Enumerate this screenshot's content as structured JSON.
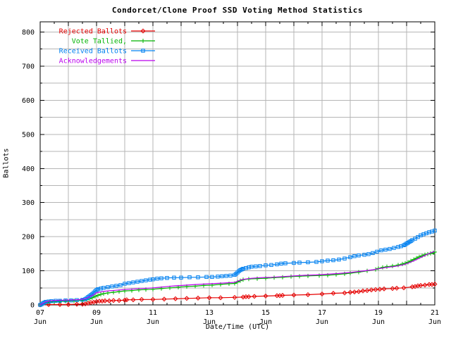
{
  "page": {
    "background": "#ffffff",
    "text_color": "#000000",
    "grid_color": "#b5b5b5"
  },
  "chart_data": {
    "type": "line",
    "title": "Condorcet/Clone Proof SSD Voting Method Statistics",
    "xlabel": "Date/Time (UTC)",
    "ylabel": "Ballots",
    "xlim": [
      7,
      21
    ],
    "ylim": [
      0,
      830
    ],
    "grid": {
      "enabled": true,
      "x_interval_days": 1,
      "y_interval": 50
    },
    "legend_position": "top-left-inside",
    "x_ticks": [
      {
        "day": 7,
        "line1": "07",
        "line2": "Jun"
      },
      {
        "day": 9,
        "line1": "09",
        "line2": "Jun"
      },
      {
        "day": 11,
        "line1": "11",
        "line2": "Jun"
      },
      {
        "day": 13,
        "line1": "13",
        "line2": "Jun"
      },
      {
        "day": 15,
        "line1": "15",
        "line2": "Jun"
      },
      {
        "day": 17,
        "line1": "17",
        "line2": "Jun"
      },
      {
        "day": 19,
        "line1": "19",
        "line2": "Jun"
      },
      {
        "day": 21,
        "line1": "21",
        "line2": "Jun"
      }
    ],
    "y_ticks": [
      0,
      100,
      200,
      300,
      400,
      500,
      600,
      700,
      800
    ],
    "series": [
      {
        "name": "Rejected Ballots",
        "color": "#e60000",
        "marker": "diamond",
        "points": [
          [
            7.0,
            0
          ],
          [
            7.3,
            1
          ],
          [
            7.7,
            1
          ],
          [
            8.0,
            1
          ],
          [
            8.3,
            2
          ],
          [
            8.5,
            2
          ],
          [
            8.6,
            3
          ],
          [
            8.7,
            5
          ],
          [
            8.8,
            7
          ],
          [
            8.9,
            8
          ],
          [
            9.0,
            10
          ],
          [
            9.1,
            11
          ],
          [
            9.2,
            11
          ],
          [
            9.3,
            12
          ],
          [
            9.45,
            12
          ],
          [
            9.6,
            13
          ],
          [
            9.8,
            13
          ],
          [
            10.0,
            14
          ],
          [
            10.07,
            15
          ],
          [
            10.3,
            15
          ],
          [
            10.6,
            16
          ],
          [
            11.0,
            16
          ],
          [
            11.4,
            17
          ],
          [
            11.8,
            18
          ],
          [
            12.2,
            19
          ],
          [
            12.6,
            20
          ],
          [
            13.0,
            21
          ],
          [
            13.4,
            21
          ],
          [
            13.9,
            22
          ],
          [
            14.2,
            23
          ],
          [
            14.3,
            24
          ],
          [
            14.4,
            24
          ],
          [
            14.6,
            25
          ],
          [
            15.0,
            26
          ],
          [
            15.4,
            27
          ],
          [
            15.5,
            27
          ],
          [
            15.6,
            28
          ],
          [
            16.0,
            29
          ],
          [
            16.5,
            30
          ],
          [
            17.0,
            32
          ],
          [
            17.4,
            34
          ],
          [
            17.8,
            35
          ],
          [
            18.0,
            37
          ],
          [
            18.15,
            38
          ],
          [
            18.3,
            39
          ],
          [
            18.45,
            41
          ],
          [
            18.6,
            42
          ],
          [
            18.75,
            44
          ],
          [
            18.9,
            45
          ],
          [
            19.05,
            46
          ],
          [
            19.2,
            47
          ],
          [
            19.5,
            48
          ],
          [
            19.65,
            49
          ],
          [
            19.9,
            50
          ],
          [
            20.2,
            53
          ],
          [
            20.3,
            54
          ],
          [
            20.4,
            56
          ],
          [
            20.5,
            57
          ],
          [
            20.65,
            58
          ],
          [
            20.8,
            60
          ],
          [
            20.9,
            60
          ],
          [
            21.0,
            61
          ]
        ]
      },
      {
        "name": "Vote Tallied,",
        "color": "#00b400",
        "marker": "plus",
        "points": [
          [
            7.0,
            0
          ],
          [
            7.05,
            1
          ],
          [
            7.1,
            3
          ],
          [
            7.2,
            6
          ],
          [
            7.3,
            8
          ],
          [
            7.5,
            9
          ],
          [
            7.7,
            10
          ],
          [
            7.9,
            11
          ],
          [
            8.2,
            12
          ],
          [
            8.5,
            13
          ],
          [
            8.65,
            15
          ],
          [
            8.75,
            18
          ],
          [
            8.85,
            21
          ],
          [
            8.95,
            25
          ],
          [
            9.05,
            28
          ],
          [
            9.15,
            31
          ],
          [
            9.25,
            33
          ],
          [
            9.4,
            35
          ],
          [
            9.6,
            37
          ],
          [
            9.8,
            39
          ],
          [
            10.0,
            41
          ],
          [
            10.25,
            42
          ],
          [
            10.5,
            44
          ],
          [
            10.75,
            45
          ],
          [
            11.0,
            46
          ],
          [
            11.3,
            48
          ],
          [
            11.6,
            50
          ],
          [
            11.9,
            52
          ],
          [
            12.2,
            54
          ],
          [
            12.5,
            55
          ],
          [
            12.8,
            57
          ],
          [
            13.1,
            58
          ],
          [
            13.4,
            60
          ],
          [
            13.7,
            62
          ],
          [
            13.9,
            63
          ],
          [
            14.0,
            67
          ],
          [
            14.1,
            71
          ],
          [
            14.2,
            74
          ],
          [
            14.4,
            76
          ],
          [
            14.7,
            77
          ],
          [
            15.0,
            78
          ],
          [
            15.3,
            80
          ],
          [
            15.6,
            81
          ],
          [
            15.9,
            83
          ],
          [
            16.2,
            84
          ],
          [
            16.5,
            85
          ],
          [
            16.9,
            86
          ],
          [
            17.2,
            87
          ],
          [
            17.5,
            89
          ],
          [
            17.8,
            91
          ],
          [
            18.0,
            93
          ],
          [
            18.3,
            96
          ],
          [
            18.6,
            100
          ],
          [
            18.9,
            104
          ],
          [
            19.0,
            107
          ],
          [
            19.15,
            110
          ],
          [
            19.3,
            112
          ],
          [
            19.5,
            114
          ],
          [
            19.7,
            117
          ],
          [
            19.85,
            120
          ],
          [
            19.95,
            122
          ],
          [
            20.05,
            125
          ],
          [
            20.15,
            129
          ],
          [
            20.25,
            133
          ],
          [
            20.35,
            137
          ],
          [
            20.45,
            141
          ],
          [
            20.55,
            144
          ],
          [
            20.65,
            147
          ],
          [
            20.75,
            149
          ],
          [
            20.85,
            151
          ],
          [
            20.95,
            153
          ],
          [
            21.0,
            155
          ]
        ]
      },
      {
        "name": "Received Ballots",
        "color": "#0080f0",
        "marker": "square",
        "points": [
          [
            7.0,
            0
          ],
          [
            7.05,
            2
          ],
          [
            7.1,
            5
          ],
          [
            7.15,
            7
          ],
          [
            7.2,
            9
          ],
          [
            7.3,
            10
          ],
          [
            7.4,
            11
          ],
          [
            7.55,
            12
          ],
          [
            7.7,
            12
          ],
          [
            7.9,
            13
          ],
          [
            8.1,
            13
          ],
          [
            8.3,
            14
          ],
          [
            8.5,
            15
          ],
          [
            8.6,
            17
          ],
          [
            8.65,
            20
          ],
          [
            8.7,
            23
          ],
          [
            8.75,
            26
          ],
          [
            8.8,
            29
          ],
          [
            8.85,
            32
          ],
          [
            8.9,
            36
          ],
          [
            8.95,
            40
          ],
          [
            9.0,
            44
          ],
          [
            9.05,
            46
          ],
          [
            9.15,
            48
          ],
          [
            9.25,
            50
          ],
          [
            9.4,
            52
          ],
          [
            9.55,
            54
          ],
          [
            9.7,
            56
          ],
          [
            9.85,
            58
          ],
          [
            10.0,
            62
          ],
          [
            10.15,
            64
          ],
          [
            10.3,
            66
          ],
          [
            10.45,
            68
          ],
          [
            10.6,
            70
          ],
          [
            10.75,
            72
          ],
          [
            10.9,
            74
          ],
          [
            11.0,
            75
          ],
          [
            11.15,
            77
          ],
          [
            11.3,
            78
          ],
          [
            11.5,
            79
          ],
          [
            11.75,
            80
          ],
          [
            12.0,
            80
          ],
          [
            12.3,
            81
          ],
          [
            12.6,
            81
          ],
          [
            12.9,
            82
          ],
          [
            13.1,
            82
          ],
          [
            13.3,
            83
          ],
          [
            13.45,
            84
          ],
          [
            13.6,
            85
          ],
          [
            13.75,
            86
          ],
          [
            13.9,
            88
          ],
          [
            13.95,
            91
          ],
          [
            14.0,
            95
          ],
          [
            14.05,
            99
          ],
          [
            14.1,
            102
          ],
          [
            14.15,
            104
          ],
          [
            14.2,
            106
          ],
          [
            14.3,
            108
          ],
          [
            14.4,
            110
          ],
          [
            14.5,
            112
          ],
          [
            14.65,
            113
          ],
          [
            14.8,
            114
          ],
          [
            15.0,
            116
          ],
          [
            15.2,
            117
          ],
          [
            15.4,
            119
          ],
          [
            15.55,
            121
          ],
          [
            15.7,
            122
          ],
          [
            16.0,
            123
          ],
          [
            16.2,
            124
          ],
          [
            16.5,
            125
          ],
          [
            16.8,
            126
          ],
          [
            17.0,
            128
          ],
          [
            17.2,
            130
          ],
          [
            17.4,
            131
          ],
          [
            17.6,
            133
          ],
          [
            17.8,
            136
          ],
          [
            18.0,
            140
          ],
          [
            18.15,
            143
          ],
          [
            18.3,
            145
          ],
          [
            18.5,
            147
          ],
          [
            18.65,
            149
          ],
          [
            18.8,
            152
          ],
          [
            18.95,
            156
          ],
          [
            19.1,
            160
          ],
          [
            19.25,
            162
          ],
          [
            19.4,
            164
          ],
          [
            19.55,
            167
          ],
          [
            19.7,
            170
          ],
          [
            19.8,
            172
          ],
          [
            19.9,
            175
          ],
          [
            19.95,
            177
          ],
          [
            20.0,
            180
          ],
          [
            20.05,
            182
          ],
          [
            20.1,
            185
          ],
          [
            20.15,
            187
          ],
          [
            20.2,
            190
          ],
          [
            20.3,
            194
          ],
          [
            20.4,
            199
          ],
          [
            20.5,
            204
          ],
          [
            20.6,
            207
          ],
          [
            20.7,
            210
          ],
          [
            20.8,
            213
          ],
          [
            20.9,
            215
          ],
          [
            21.0,
            218
          ]
        ]
      },
      {
        "name": "Acknowledgements",
        "color": "#bb00ee",
        "marker": "none",
        "points": [
          [
            7.0,
            0
          ],
          [
            7.1,
            5
          ],
          [
            7.2,
            9
          ],
          [
            7.35,
            12
          ],
          [
            7.5,
            13
          ],
          [
            7.9,
            14
          ],
          [
            8.3,
            15
          ],
          [
            8.6,
            18
          ],
          [
            8.75,
            24
          ],
          [
            8.9,
            30
          ],
          [
            9.0,
            36
          ],
          [
            9.2,
            39
          ],
          [
            9.4,
            41
          ],
          [
            9.7,
            43
          ],
          [
            10.0,
            45
          ],
          [
            10.4,
            47
          ],
          [
            10.8,
            49
          ],
          [
            11.0,
            50
          ],
          [
            11.4,
            53
          ],
          [
            11.8,
            56
          ],
          [
            12.2,
            58
          ],
          [
            12.6,
            60
          ],
          [
            13.0,
            62
          ],
          [
            13.5,
            64
          ],
          [
            13.9,
            66
          ],
          [
            14.05,
            71
          ],
          [
            14.2,
            75
          ],
          [
            14.5,
            78
          ],
          [
            14.8,
            80
          ],
          [
            15.2,
            81
          ],
          [
            15.6,
            83
          ],
          [
            16.0,
            85
          ],
          [
            16.4,
            87
          ],
          [
            16.8,
            88
          ],
          [
            17.2,
            90
          ],
          [
            17.6,
            92
          ],
          [
            18.0,
            95
          ],
          [
            18.4,
            99
          ],
          [
            18.8,
            103
          ],
          [
            19.0,
            106
          ],
          [
            19.3,
            110
          ],
          [
            19.6,
            113
          ],
          [
            19.9,
            118
          ],
          [
            20.1,
            124
          ],
          [
            20.3,
            131
          ],
          [
            20.5,
            139
          ],
          [
            20.7,
            147
          ],
          [
            20.85,
            153
          ],
          [
            21.0,
            157
          ]
        ]
      }
    ]
  }
}
